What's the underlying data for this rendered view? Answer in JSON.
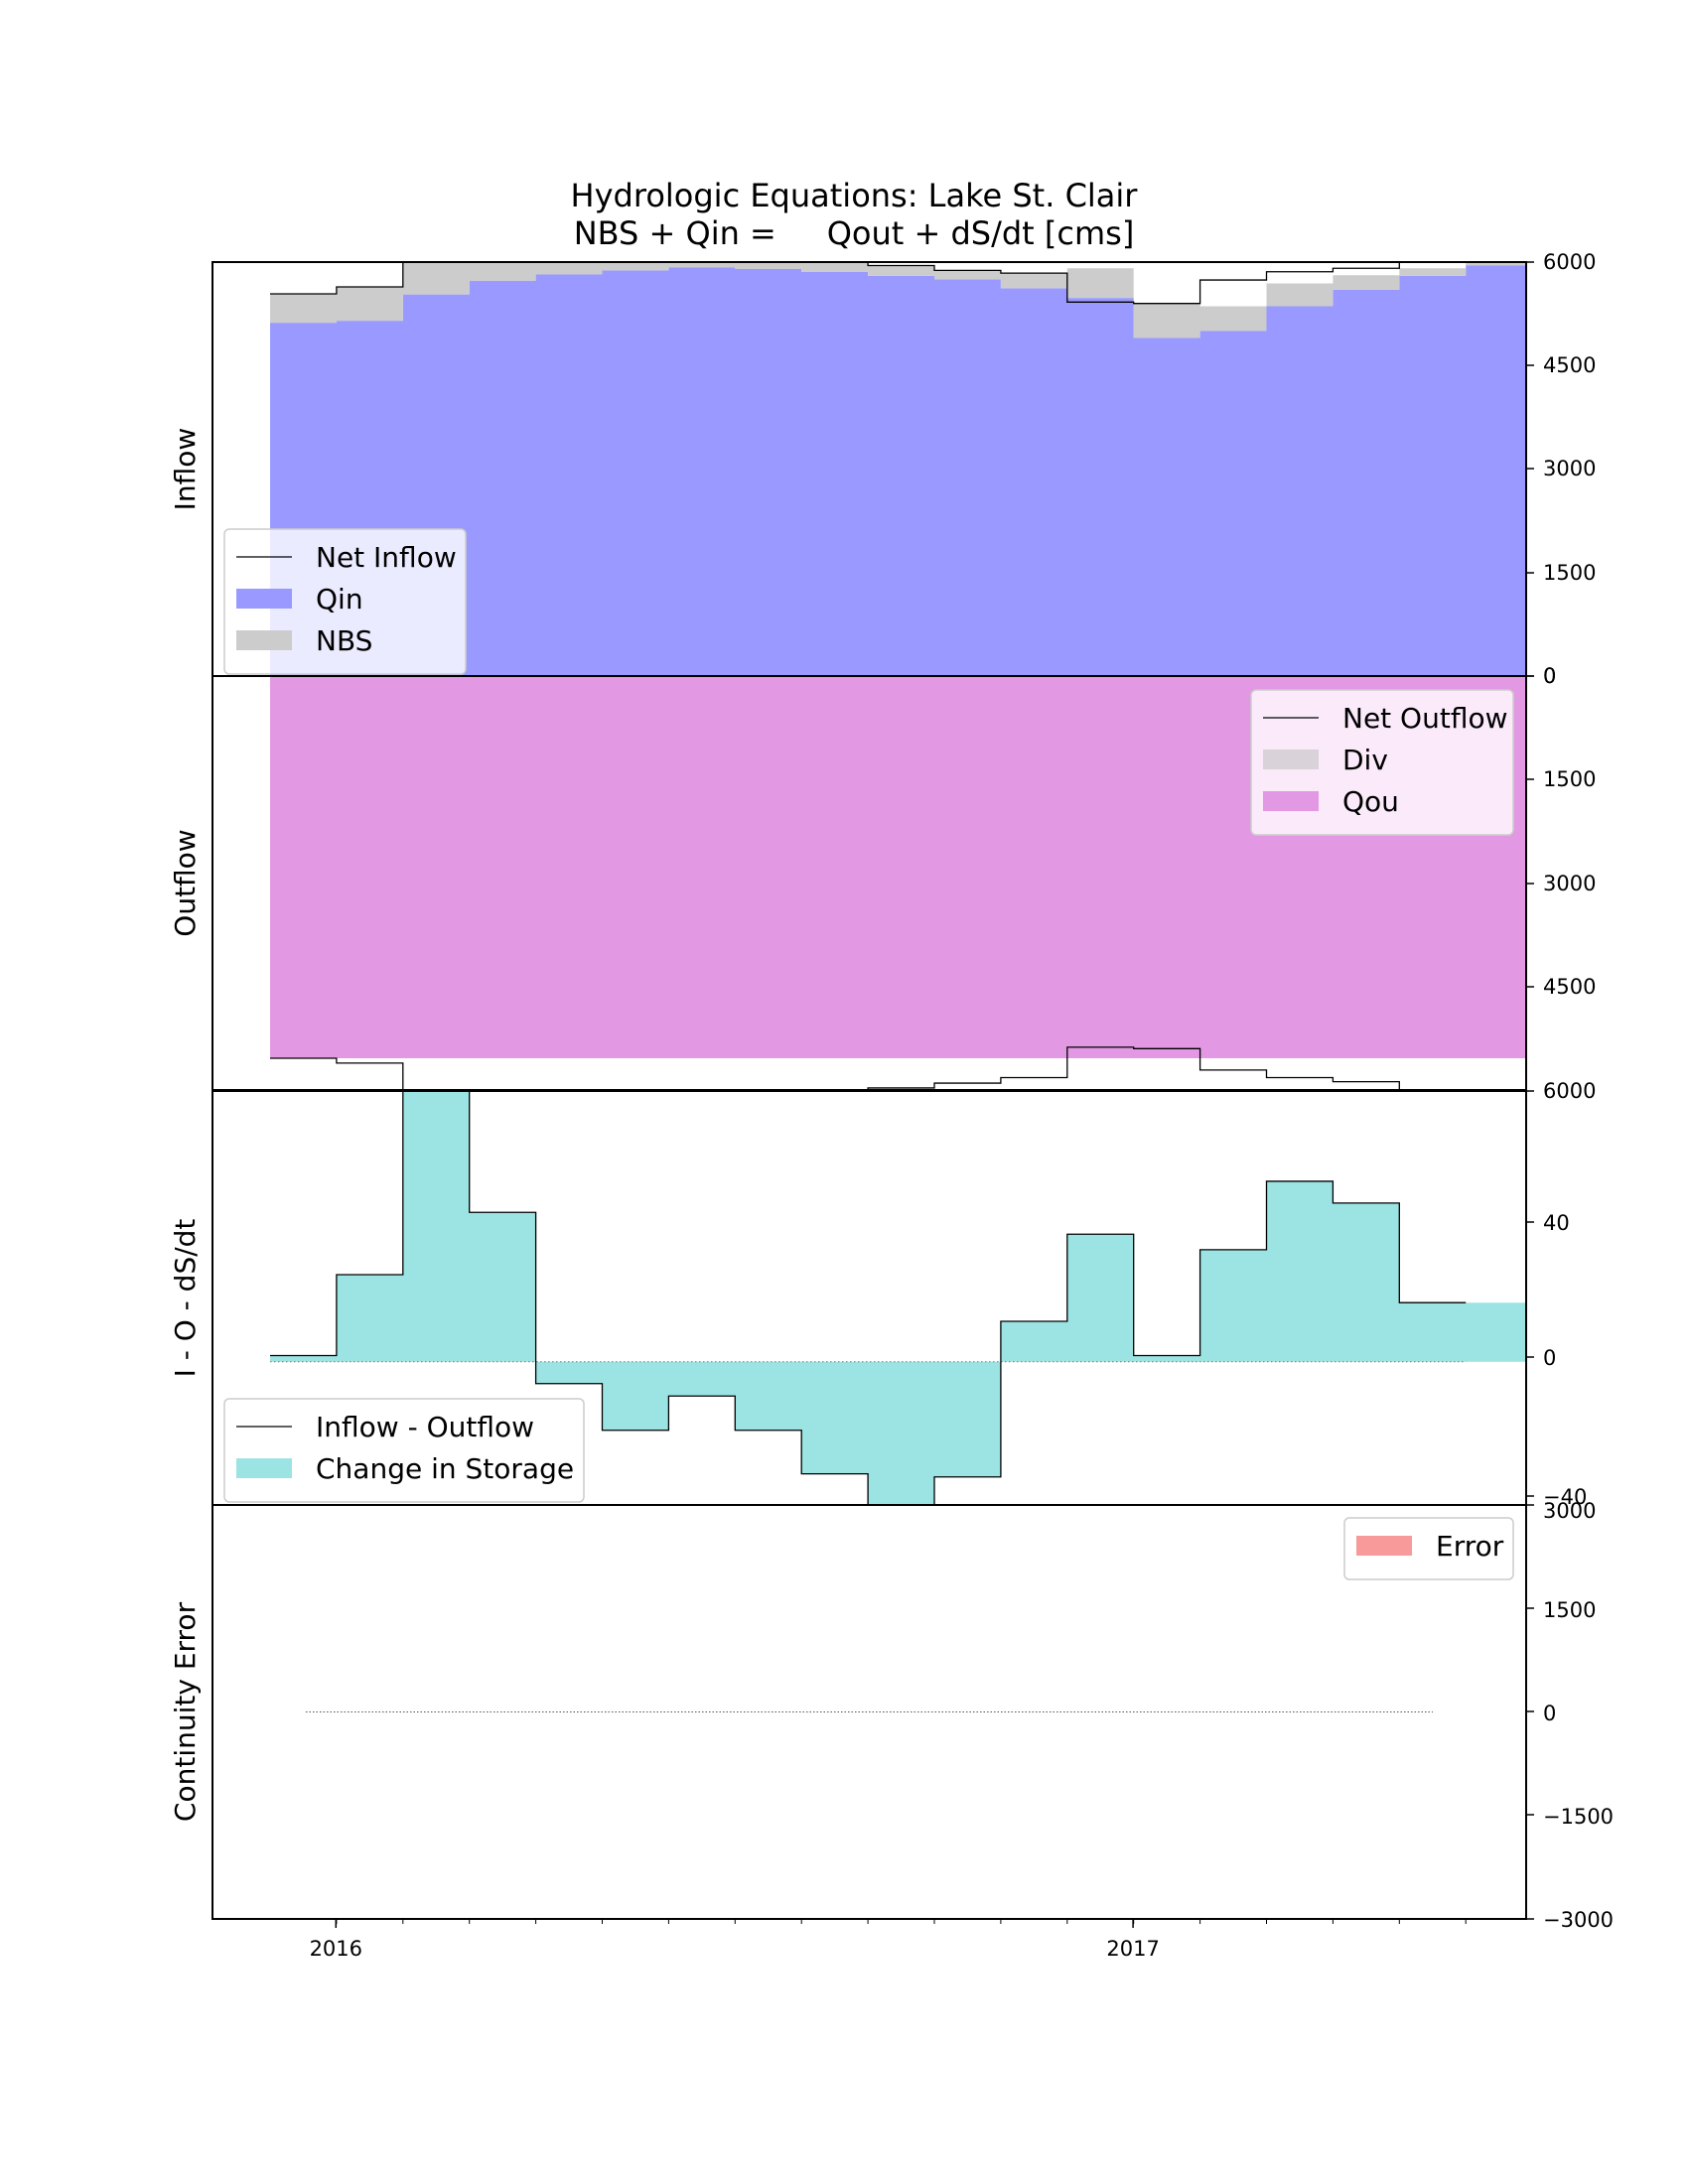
{
  "title_line1": "Hydrologic Equations: Lake St. Clair",
  "title_line2": "NBS + Qin =     Qout + dS/dt [cms]",
  "colors": {
    "qin": "#9999ff",
    "nbs": "#cccccc",
    "div": "#d9d2d9",
    "qou": "#e398e3",
    "storage": "#9ce4e4",
    "error": "#f89a9a",
    "line": "#000000"
  },
  "months": [
    "2015-12",
    "2016-01",
    "2016-02",
    "2016-03",
    "2016-04",
    "2016-05",
    "2016-06",
    "2016-07",
    "2016-08",
    "2016-09",
    "2016-10",
    "2016-11",
    "2016-12",
    "2017-01",
    "2017-02",
    "2017-03",
    "2017-04",
    "2017-05",
    "2017-06"
  ],
  "x_ticks": [
    "2016",
    "2017"
  ],
  "chart_data": [
    {
      "type": "area",
      "panel": "inflow",
      "ylabel": "Inflow",
      "ylim": [
        0,
        6000
      ],
      "yticks": [
        "0",
        "1500",
        "3000",
        "4500",
        "6000"
      ],
      "legend_position": "center-left",
      "series": [
        {
          "name": "Net Inflow",
          "style": "step-line",
          "values": [
            5540,
            5640,
            6000,
            6000,
            6000,
            6000,
            6000,
            6000,
            6000,
            5950,
            5880,
            5840,
            5420,
            5400,
            5740,
            5860,
            5910,
            6000,
            null
          ]
        },
        {
          "name": "Qin",
          "style": "step-fill",
          "values": [
            5120,
            5150,
            5530,
            5730,
            5820,
            5880,
            5920,
            5900,
            5860,
            5800,
            5750,
            5620,
            5480,
            4900,
            5000,
            5360,
            5600,
            5800,
            5950
          ]
        },
        {
          "name": "NBS",
          "style": "step-fill-stacked",
          "values": [
            420,
            490,
            470,
            270,
            180,
            120,
            100,
            100,
            130,
            150,
            130,
            220,
            430,
            500,
            360,
            330,
            210,
            110,
            60
          ]
        }
      ]
    },
    {
      "type": "area",
      "panel": "outflow",
      "ylabel": "Outflow",
      "ylim": [
        6000,
        0
      ],
      "yticks": [
        "0",
        "1500",
        "3000",
        "4500",
        "6000"
      ],
      "legend_position": "upper-right",
      "series": [
        {
          "name": "Net Outflow",
          "style": "step-line",
          "values": [
            5540,
            5610,
            6000,
            6000,
            6000,
            6000,
            6000,
            6000,
            6000,
            5970,
            5900,
            5820,
            5380,
            5400,
            5710,
            5820,
            5880,
            6000,
            null
          ]
        },
        {
          "name": "Div",
          "style": "step-fill",
          "values": [
            0,
            0,
            0,
            0,
            0,
            0,
            0,
            0,
            0,
            0,
            0,
            0,
            0,
            0,
            0,
            0,
            0,
            0,
            0
          ]
        },
        {
          "name": "Qou",
          "style": "step-fill",
          "values": [
            5540,
            5540,
            5540,
            5540,
            5540,
            5540,
            5540,
            5540,
            5540,
            5540,
            5540,
            5540,
            5540,
            5540,
            5540,
            5540,
            5540,
            5540,
            5540
          ]
        }
      ]
    },
    {
      "type": "area",
      "panel": "storage",
      "ylabel": "I - O - dS/dt",
      "ylim": [
        -46,
        87
      ],
      "yticks": [
        "40",
        "0",
        "−40"
      ],
      "legend_position": "lower-left",
      "series": [
        {
          "name": "Inflow - Outflow",
          "style": "step-line",
          "values": [
            2,
            28,
            87,
            48,
            -7,
            -22,
            -11,
            -22,
            -36,
            -48,
            -37,
            13,
            41,
            2,
            36,
            58,
            51,
            19,
            null
          ]
        },
        {
          "name": "Change in Storage",
          "style": "step-fill",
          "values": [
            2,
            28,
            87,
            48,
            -7,
            -22,
            -11,
            -22,
            -36,
            -48,
            -37,
            13,
            41,
            2,
            36,
            58,
            51,
            19,
            19
          ]
        }
      ]
    },
    {
      "type": "area",
      "panel": "error",
      "ylabel": "Continuity Error",
      "ylim": [
        -3000,
        3000
      ],
      "yticks": [
        "3000",
        "1500",
        "0",
        "−1500",
        "−3000"
      ],
      "legend_position": "upper-right",
      "series": [
        {
          "name": "Error",
          "style": "step-fill",
          "values": [
            0,
            0,
            0,
            0,
            0,
            0,
            0,
            0,
            0,
            0,
            0,
            0,
            0,
            0,
            0,
            0,
            0,
            0,
            0
          ]
        }
      ]
    }
  ]
}
